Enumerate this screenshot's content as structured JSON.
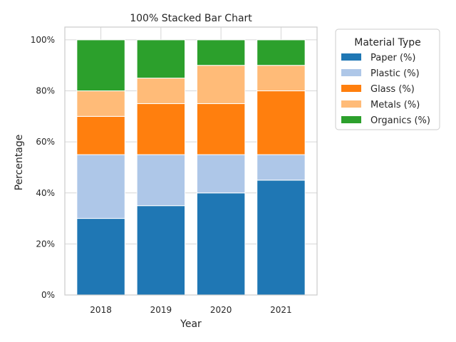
{
  "chart_data": {
    "type": "bar",
    "stacked": true,
    "normalized_percent": true,
    "title": "100% Stacked Bar Chart",
    "xlabel": "Year",
    "ylabel": "Percentage",
    "categories": [
      "2018",
      "2019",
      "2020",
      "2021"
    ],
    "yticks": [
      "0%",
      "20%",
      "40%",
      "60%",
      "80%",
      "100%"
    ],
    "ylim": [
      0,
      105
    ],
    "grid": true,
    "legend": {
      "title": "Material Type",
      "placement": "outside-top-right"
    },
    "series": [
      {
        "name": "Paper (%)",
        "color": "#1f77b4",
        "values": [
          30,
          35,
          40,
          45
        ]
      },
      {
        "name": "Plastic (%)",
        "color": "#aec7e8",
        "values": [
          25,
          20,
          15,
          10
        ]
      },
      {
        "name": "Glass (%)",
        "color": "#ff7f0e",
        "values": [
          15,
          20,
          20,
          25
        ]
      },
      {
        "name": "Metals (%)",
        "color": "#ffbb78",
        "values": [
          10,
          10,
          15,
          10
        ]
      },
      {
        "name": "Organics (%)",
        "color": "#2ca02c",
        "values": [
          20,
          15,
          10,
          10
        ]
      }
    ]
  }
}
